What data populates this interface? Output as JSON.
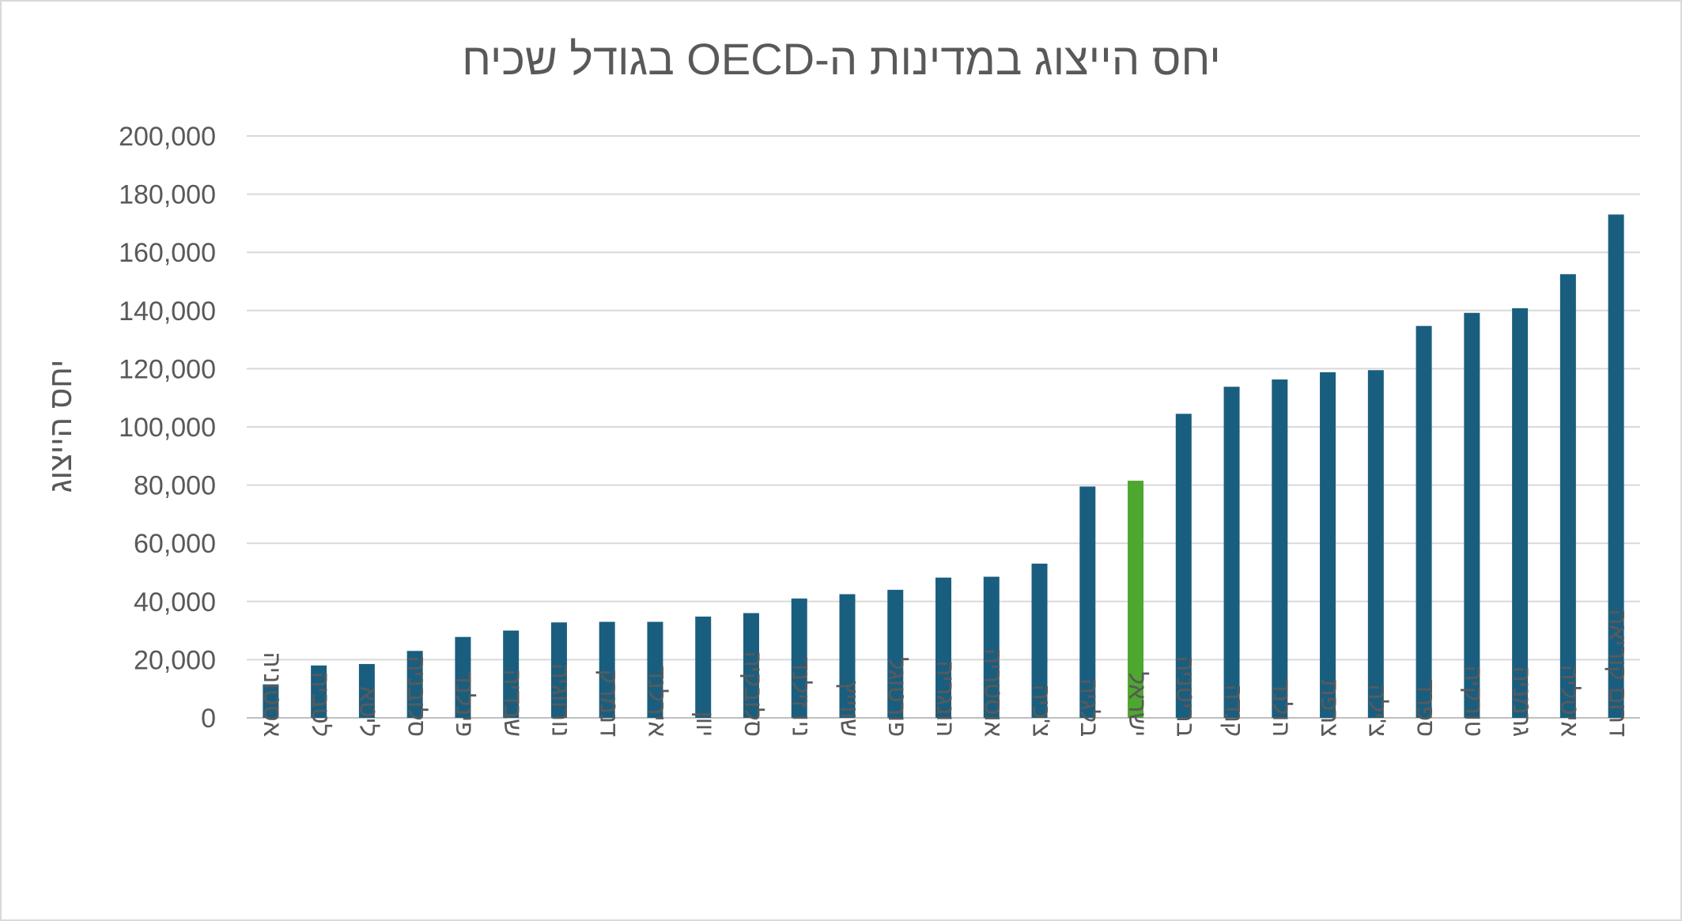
{
  "chart_data": {
    "type": "bar",
    "title": "יחס הייצוג במדינות ה-OECD בגודל שכיח",
    "xlabel": "",
    "ylabel": "יחס הייצוג",
    "ylim": [
      0,
      200000
    ],
    "yticks": [
      "0",
      "20,000",
      "40,000",
      "60,000",
      "80,000",
      "100,000",
      "120,000",
      "140,000",
      "160,000",
      "180,000",
      "200,000"
    ],
    "grid": true,
    "legend": "none",
    "colors": {
      "default": "#1a5e7f",
      "highlight": "#4ea72e",
      "grid": "#d9d9d9",
      "axis": "#bfbfbf",
      "text": "#595959"
    },
    "highlight_category": "ישראל",
    "categories": [
      "אסטוניה",
      "לטביה",
      "ליטא",
      "סלובניה",
      "פינלנד",
      "שבדיה",
      "נורווגיה",
      "דנמרק",
      "אירלנד",
      "יוון",
      "סלובקיה",
      "ניו זילנד",
      "שווייץ",
      "פורטוגל",
      "הונגריה",
      "אוסטריה",
      "צ'כיה",
      "בלגיה",
      "ישראל",
      "בריטניה",
      "קנדה",
      "הולנד",
      "צרפת",
      "צ'ילה",
      "ספרד",
      "טורקיה",
      "גרמניה",
      "איטליה",
      "דרום קוריאה"
    ],
    "values": [
      11500,
      18000,
      18500,
      23000,
      27800,
      30000,
      32800,
      33000,
      33000,
      34800,
      36000,
      41000,
      42500,
      44000,
      48200,
      48500,
      53000,
      79500,
      81500,
      104500,
      113800,
      116300,
      118800,
      119500,
      134700,
      139200,
      140800,
      152500,
      173000
    ]
  }
}
